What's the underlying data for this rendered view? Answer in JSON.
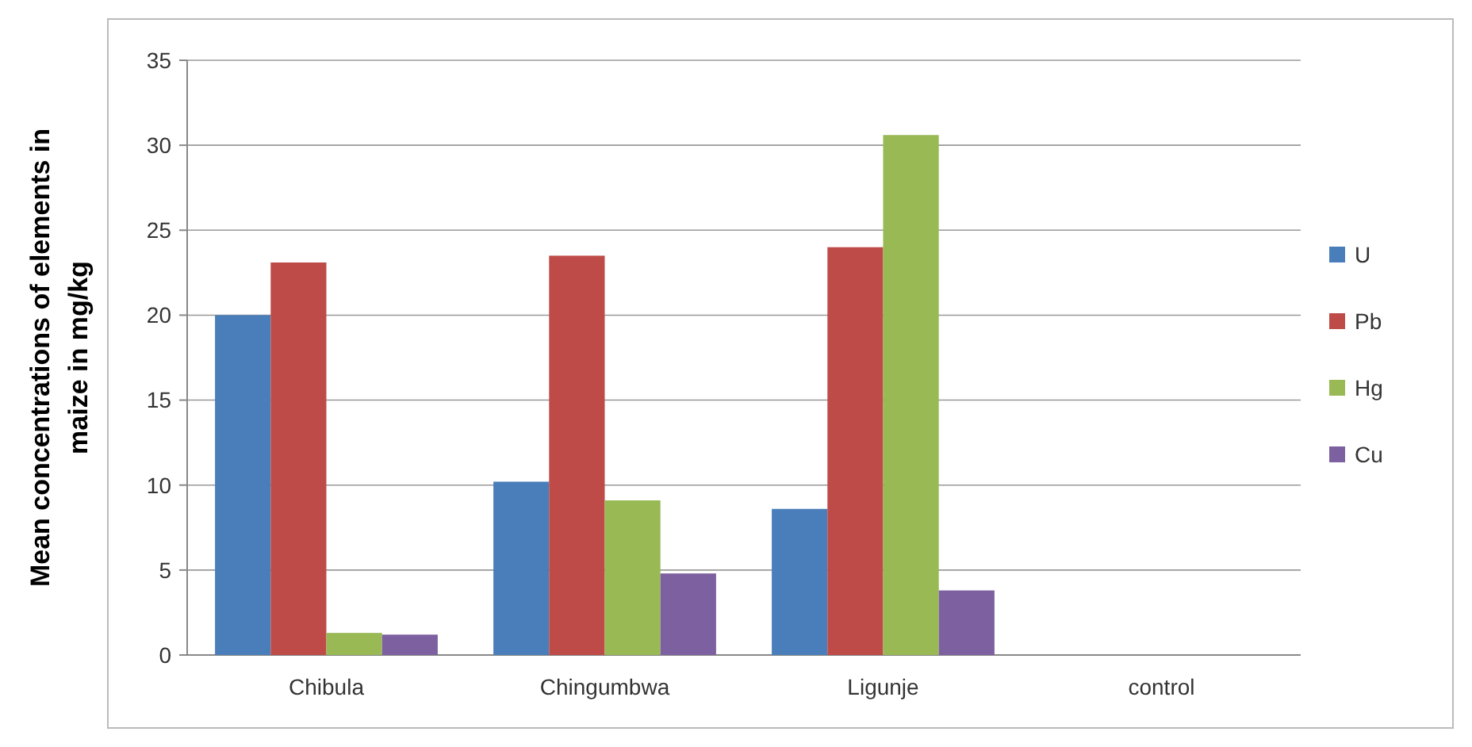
{
  "chart_data": {
    "type": "bar",
    "ylabel": "Mean concentrations of elements in maize in mg/kg",
    "categories": [
      "Chibula",
      "Chingumbwa",
      "Ligunje",
      "control"
    ],
    "series": [
      {
        "name": "U",
        "color": "#4a7ebb",
        "values": [
          20,
          10.2,
          8.6,
          0
        ]
      },
      {
        "name": "Pb",
        "color": "#be4b48",
        "values": [
          23.1,
          23.5,
          24,
          0
        ]
      },
      {
        "name": "Hg",
        "color": "#98b954",
        "values": [
          1.3,
          9.1,
          30.6,
          0
        ]
      },
      {
        "name": "Cu",
        "color": "#7d60a0",
        "values": [
          1.2,
          4.8,
          3.8,
          0
        ]
      }
    ],
    "ylim": [
      0,
      35
    ],
    "yticks": [
      0,
      5,
      10,
      15,
      20,
      25,
      30,
      35
    ],
    "grid": "y",
    "legend": "right"
  }
}
